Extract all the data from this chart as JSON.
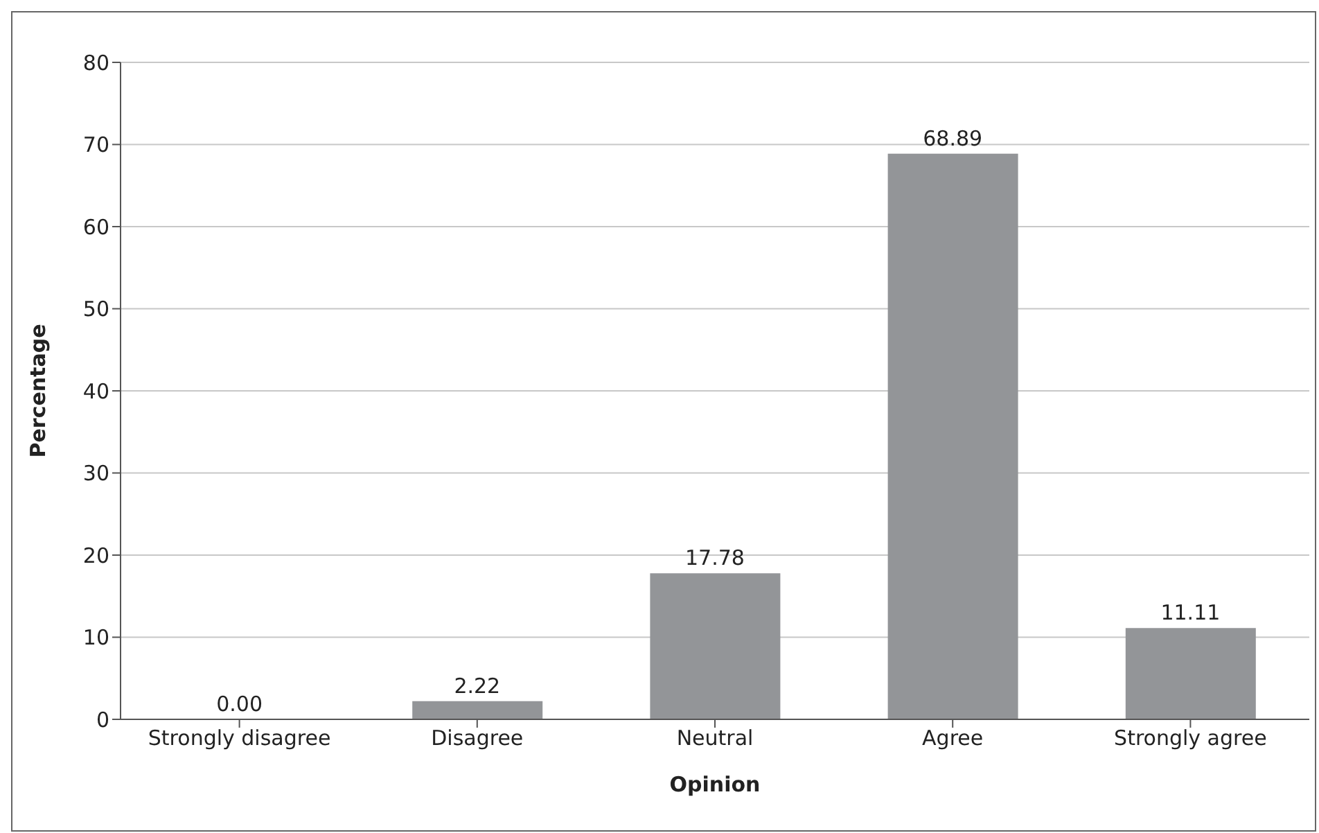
{
  "chart_data": {
    "type": "bar",
    "xlabel": "Opinion",
    "ylabel": "Percentage",
    "categories": [
      "Strongly disagree",
      "Disagree",
      "Neutral",
      "Agree",
      "Strongly agree"
    ],
    "values": [
      0,
      2.22,
      17.78,
      68.89,
      11.11
    ],
    "value_labels": [
      "0.00",
      "2.22",
      "17.78",
      "68.89",
      "11.11"
    ],
    "color": "#939598",
    "ylim": [
      0,
      80
    ],
    "yticks": [
      0,
      10,
      20,
      30,
      40,
      50,
      60,
      70,
      80
    ],
    "grid": "y"
  }
}
